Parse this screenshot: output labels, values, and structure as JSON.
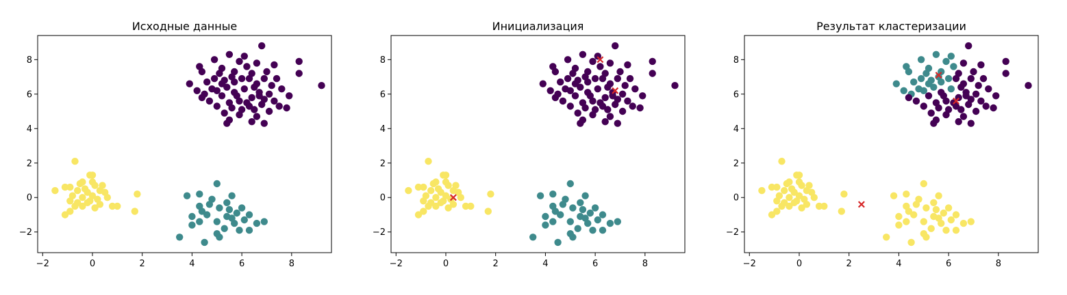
{
  "figure": {
    "background": "#ffffff"
  },
  "palette": {
    "purple": "#440154",
    "teal": "#3e8a8c",
    "yellow": "#f8e664",
    "centroid": "#d62728"
  },
  "chart_data": [
    {
      "type": "scatter",
      "title": "Исходные данные",
      "xlim": [
        -2.2,
        9.6
      ],
      "ylim": [
        -3.2,
        9.4
      ],
      "xticks": [
        -2,
        0,
        2,
        4,
        6,
        8
      ],
      "yticks": [
        -2,
        0,
        2,
        4,
        6,
        8
      ],
      "grid": false,
      "legend": "none",
      "point_clusters": [
        0,
        1,
        2
      ],
      "cluster_colors": [
        "#440154",
        "#3e8a8c",
        "#f8e664"
      ],
      "centroids": []
    },
    {
      "type": "scatter",
      "title": "Инициализация",
      "xlim": [
        -2.2,
        9.6
      ],
      "ylim": [
        -3.2,
        9.4
      ],
      "xticks": [
        -2,
        0,
        2,
        4,
        6,
        8
      ],
      "yticks": [
        -2,
        0,
        2,
        4,
        6,
        8
      ],
      "grid": false,
      "legend": "none",
      "point_clusters": [
        0,
        1,
        2
      ],
      "cluster_colors": [
        "#440154",
        "#3e8a8c",
        "#f8e664"
      ],
      "centroids": [
        {
          "x": 6.2,
          "y": 8.0
        },
        {
          "x": 6.8,
          "y": 6.2
        },
        {
          "x": 0.3,
          "y": 0.0
        }
      ]
    },
    {
      "type": "scatter",
      "title": "Результат кластеризации",
      "xlim": [
        -2.2,
        9.6
      ],
      "ylim": [
        -3.2,
        9.4
      ],
      "xticks": [
        -2,
        0,
        2,
        4,
        6,
        8
      ],
      "yticks": [
        -2,
        0,
        2,
        4,
        6,
        8
      ],
      "grid": false,
      "legend": "none",
      "point_clusters": [
        0,
        1,
        2
      ],
      "cluster_colors": [
        "#440154",
        "#3e8a8c",
        "#f8e664"
      ],
      "centroids": [
        {
          "x": 5.6,
          "y": 7.1
        },
        {
          "x": 6.3,
          "y": 5.6
        },
        {
          "x": 2.5,
          "y": -0.4
        }
      ]
    }
  ],
  "dataset": {
    "clusters": [
      {
        "name": "",
        "points": [
          [
            5.5,
            8.3
          ],
          [
            6.1,
            8.2
          ],
          [
            6.8,
            8.8
          ],
          [
            4.9,
            8.0
          ],
          [
            5.9,
            7.9
          ],
          [
            6.6,
            7.8
          ],
          [
            7.3,
            7.7
          ],
          [
            8.3,
            7.9
          ],
          [
            4.3,
            7.6
          ],
          [
            5.2,
            7.5
          ],
          [
            6.2,
            7.6
          ],
          [
            7.0,
            7.3
          ],
          [
            8.3,
            7.2
          ],
          [
            4.4,
            7.3
          ],
          [
            5.1,
            7.2
          ],
          [
            5.7,
            7.3
          ],
          [
            6.4,
            7.2
          ],
          [
            6.9,
            6.9
          ],
          [
            7.4,
            6.9
          ],
          [
            3.9,
            6.6
          ],
          [
            4.6,
            6.7
          ],
          [
            5.3,
            6.8
          ],
          [
            6.0,
            6.9
          ],
          [
            6.6,
            6.6
          ],
          [
            7.2,
            6.5
          ],
          [
            9.2,
            6.5
          ],
          [
            4.2,
            6.2
          ],
          [
            4.8,
            6.3
          ],
          [
            5.4,
            6.4
          ],
          [
            6.1,
            6.3
          ],
          [
            6.7,
            6.1
          ],
          [
            7.1,
            6.0
          ],
          [
            7.9,
            5.9
          ],
          [
            4.5,
            6.0
          ],
          [
            5.2,
            5.9
          ],
          [
            5.8,
            5.9
          ],
          [
            6.4,
            5.8
          ],
          [
            6.9,
            5.7
          ],
          [
            4.7,
            5.6
          ],
          [
            5.5,
            5.5
          ],
          [
            6.2,
            5.5
          ],
          [
            6.8,
            5.4
          ],
          [
            7.5,
            5.3
          ],
          [
            7.8,
            5.2
          ],
          [
            5.0,
            5.3
          ],
          [
            5.6,
            5.2
          ],
          [
            6.0,
            5.1
          ],
          [
            6.5,
            5.1
          ],
          [
            7.1,
            5.0
          ],
          [
            5.3,
            4.9
          ],
          [
            5.9,
            4.8
          ],
          [
            6.6,
            4.7
          ],
          [
            5.5,
            4.5
          ],
          [
            6.4,
            4.4
          ],
          [
            6.9,
            4.3
          ],
          [
            5.4,
            4.3
          ],
          [
            4.9,
            6.9
          ],
          [
            5.6,
            7.0
          ],
          [
            6.3,
            6.9
          ],
          [
            5.0,
            6.2
          ],
          [
            5.7,
            6.1
          ],
          [
            6.5,
            6.4
          ],
          [
            7.6,
            6.3
          ],
          [
            4.4,
            5.8
          ],
          [
            5.9,
            5.6
          ],
          [
            6.7,
            5.9
          ],
          [
            7.3,
            5.6
          ],
          [
            5.2,
            6.6
          ],
          [
            6.3,
            5.3
          ],
          [
            5.7,
            6.7
          ]
        ]
      },
      {
        "name": "",
        "points": [
          [
            4.3,
            0.2
          ],
          [
            5.0,
            0.8
          ],
          [
            5.6,
            0.1
          ],
          [
            3.8,
            0.1
          ],
          [
            4.8,
            -0.1
          ],
          [
            5.4,
            -0.3
          ],
          [
            6.0,
            -0.6
          ],
          [
            4.3,
            -0.5
          ],
          [
            5.1,
            -0.6
          ],
          [
            5.8,
            -0.9
          ],
          [
            6.3,
            -1.0
          ],
          [
            4.0,
            -1.1
          ],
          [
            4.6,
            -1.0
          ],
          [
            5.4,
            -1.1
          ],
          [
            6.1,
            -1.3
          ],
          [
            6.6,
            -1.5
          ],
          [
            4.3,
            -1.4
          ],
          [
            5.0,
            -1.4
          ],
          [
            5.7,
            -1.5
          ],
          [
            6.9,
            -1.4
          ],
          [
            4.0,
            -1.6
          ],
          [
            5.3,
            -1.8
          ],
          [
            5.9,
            -1.9
          ],
          [
            6.3,
            -1.9
          ],
          [
            5.0,
            -2.1
          ],
          [
            3.5,
            -2.3
          ],
          [
            5.1,
            -2.3
          ],
          [
            4.5,
            -2.6
          ],
          [
            5.5,
            -0.7
          ],
          [
            4.7,
            -0.4
          ],
          [
            5.6,
            -1.2
          ],
          [
            4.4,
            -0.8
          ]
        ]
      },
      {
        "name": "",
        "points": [
          [
            -0.7,
            2.1
          ],
          [
            0.0,
            1.3
          ],
          [
            -0.1,
            1.3
          ],
          [
            -0.4,
            0.9
          ],
          [
            0.1,
            0.7
          ],
          [
            0.4,
            0.7
          ],
          [
            -0.9,
            0.6
          ],
          [
            -1.5,
            0.4
          ],
          [
            -1.1,
            0.6
          ],
          [
            -0.6,
            0.4
          ],
          [
            -0.2,
            0.3
          ],
          [
            0.3,
            0.4
          ],
          [
            0.5,
            0.3
          ],
          [
            -0.8,
            0.1
          ],
          [
            -0.4,
            0.0
          ],
          [
            0.0,
            0.1
          ],
          [
            0.6,
            0.0
          ],
          [
            1.8,
            0.2
          ],
          [
            -0.9,
            -0.2
          ],
          [
            -0.6,
            -0.3
          ],
          [
            -0.2,
            -0.3
          ],
          [
            0.3,
            -0.4
          ],
          [
            0.8,
            -0.5
          ],
          [
            1.0,
            -0.5
          ],
          [
            -0.7,
            -0.5
          ],
          [
            -0.4,
            -0.5
          ],
          [
            0.1,
            -0.6
          ],
          [
            -0.9,
            -0.8
          ],
          [
            1.7,
            -0.8
          ],
          [
            -1.1,
            -1.0
          ],
          [
            -0.3,
            0.5
          ],
          [
            0.2,
            -0.1
          ],
          [
            -0.5,
            0.8
          ],
          [
            0.0,
            0.9
          ],
          [
            -0.1,
            -0.2
          ]
        ]
      }
    ],
    "result_assignment_purple": "x >= 5.8 || y <= 6.1",
    "result_assignment_yellow": "y < 3"
  }
}
